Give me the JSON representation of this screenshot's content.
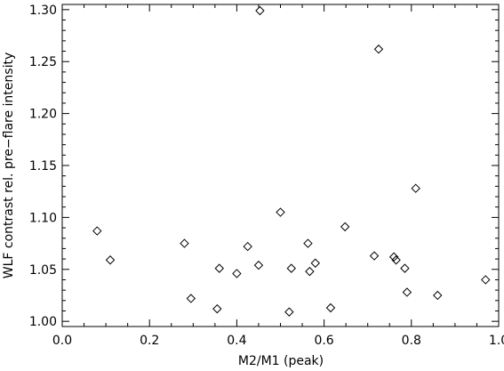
{
  "chart_data": {
    "type": "scatter",
    "title": "",
    "xlabel": "M2/M1 (peak)",
    "ylabel": "WLF contrast rel. pre−flare intensity",
    "xlim": [
      0.0,
      1.0
    ],
    "ylim": [
      0.995,
      1.305
    ],
    "x_ticks": [
      0.0,
      0.2,
      0.4,
      0.6,
      0.8,
      1.0
    ],
    "x_tick_labels": [
      "0.0",
      "0.2",
      "0.4",
      "0.6",
      "0.8",
      "1.0"
    ],
    "y_ticks": [
      1.0,
      1.05,
      1.1,
      1.15,
      1.2,
      1.25,
      1.3
    ],
    "y_tick_labels": [
      "1.00",
      "1.05",
      "1.10",
      "1.15",
      "1.20",
      "1.25",
      "1.30"
    ],
    "x_minor_step": 0.05,
    "y_minor_step": 0.01,
    "marker": "diamond",
    "grid": false,
    "points": [
      {
        "x": 0.08,
        "y": 1.087
      },
      {
        "x": 0.11,
        "y": 1.059
      },
      {
        "x": 0.28,
        "y": 1.075
      },
      {
        "x": 0.295,
        "y": 1.022
      },
      {
        "x": 0.355,
        "y": 1.012
      },
      {
        "x": 0.36,
        "y": 1.051
      },
      {
        "x": 0.4,
        "y": 1.046
      },
      {
        "x": 0.425,
        "y": 1.072
      },
      {
        "x": 0.45,
        "y": 1.054
      },
      {
        "x": 0.453,
        "y": 1.299
      },
      {
        "x": 0.5,
        "y": 1.105
      },
      {
        "x": 0.52,
        "y": 1.009
      },
      {
        "x": 0.525,
        "y": 1.051
      },
      {
        "x": 0.563,
        "y": 1.075
      },
      {
        "x": 0.567,
        "y": 1.048
      },
      {
        "x": 0.58,
        "y": 1.056
      },
      {
        "x": 0.615,
        "y": 1.013
      },
      {
        "x": 0.648,
        "y": 1.091
      },
      {
        "x": 0.715,
        "y": 1.063
      },
      {
        "x": 0.725,
        "y": 1.262
      },
      {
        "x": 0.76,
        "y": 1.062
      },
      {
        "x": 0.765,
        "y": 1.059
      },
      {
        "x": 0.785,
        "y": 1.051
      },
      {
        "x": 0.79,
        "y": 1.028
      },
      {
        "x": 0.81,
        "y": 1.128
      },
      {
        "x": 0.86,
        "y": 1.025
      },
      {
        "x": 0.97,
        "y": 1.04
      }
    ]
  }
}
